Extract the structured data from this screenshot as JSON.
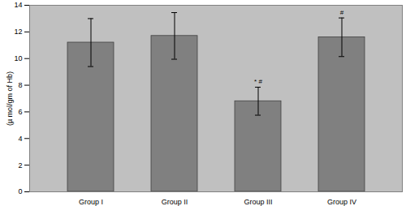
{
  "chart_data": {
    "type": "bar",
    "categories": [
      "Group I",
      "Group II",
      "Group III",
      "Group IV"
    ],
    "values": [
      11.2,
      11.7,
      6.8,
      11.6
    ],
    "errors": [
      1.8,
      1.75,
      1.05,
      1.45
    ],
    "color": "#808080",
    "ylabel": "(µ mol/gm of Hb)",
    "ylim": [
      0,
      14
    ],
    "yticks": [
      0,
      2,
      4,
      6,
      8,
      10,
      12,
      14
    ],
    "grid": false,
    "annotations": [
      {
        "category": "Group III",
        "text": "* #"
      },
      {
        "category": "Group IV",
        "text": "#"
      }
    ]
  }
}
